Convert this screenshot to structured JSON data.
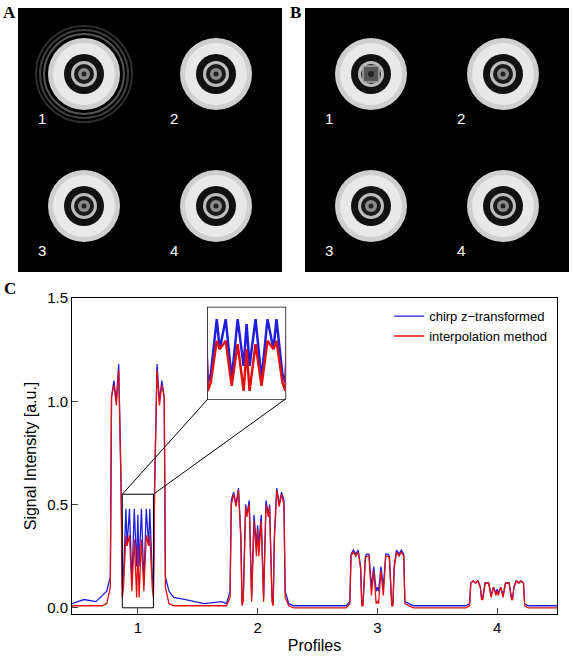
{
  "image_panels": [
    {
      "letter": "A",
      "labels": [
        "1",
        "2",
        "3",
        "4"
      ]
    },
    {
      "letter": "B",
      "labels": [
        "1",
        "2",
        "3",
        "4"
      ]
    }
  ],
  "chart_panel": {
    "letter": "C"
  },
  "chart_data": {
    "type": "line",
    "x_label": "Profiles",
    "y_label": "Signal Intensity [a.u.]",
    "xlim": [
      0.45,
      4.5
    ],
    "ylim": [
      -0.03,
      1.5
    ],
    "xticks": [
      1,
      2,
      3,
      4
    ],
    "yticks": [
      {
        "value": 0,
        "label": "0.0"
      },
      0.5,
      {
        "value": 1,
        "label": "1.0"
      },
      1.5
    ],
    "legend": "top right",
    "grid": false,
    "inset": {
      "xlim": [
        0.87,
        1.13
      ],
      "ylim": [
        0,
        0.55
      ]
    },
    "x": [
      0.45,
      0.55,
      0.65,
      0.7,
      0.74,
      0.77,
      0.78,
      0.8,
      0.82,
      0.84,
      0.86,
      0.87,
      0.88,
      0.9,
      0.91,
      0.93,
      0.95,
      0.97,
      0.99,
      1.0,
      1.01,
      1.03,
      1.05,
      1.07,
      1.09,
      1.1,
      1.12,
      1.13,
      1.14,
      1.16,
      1.18,
      1.2,
      1.22,
      1.23,
      1.26,
      1.3,
      1.4,
      1.55,
      1.7,
      1.74,
      1.77,
      1.78,
      1.8,
      1.82,
      1.84,
      1.86,
      1.87,
      1.88,
      1.9,
      1.91,
      1.93,
      1.95,
      1.97,
      1.99,
      2.0,
      2.01,
      2.03,
      2.05,
      2.07,
      2.09,
      2.1,
      2.12,
      2.13,
      2.14,
      2.16,
      2.18,
      2.2,
      2.22,
      2.23,
      2.26,
      2.3,
      2.4,
      2.55,
      2.7,
      2.74,
      2.77,
      2.78,
      2.8,
      2.82,
      2.84,
      2.86,
      2.87,
      2.88,
      2.9,
      2.91,
      2.93,
      2.95,
      2.97,
      2.99,
      3.0,
      3.01,
      3.03,
      3.05,
      3.07,
      3.09,
      3.1,
      3.12,
      3.13,
      3.14,
      3.16,
      3.18,
      3.2,
      3.22,
      3.23,
      3.26,
      3.3,
      3.4,
      3.55,
      3.7,
      3.74,
      3.77,
      3.78,
      3.8,
      3.82,
      3.84,
      3.86,
      3.87,
      3.88,
      3.9,
      3.91,
      3.93,
      3.95,
      3.97,
      3.99,
      4.0,
      4.01,
      4.03,
      4.05,
      4.07,
      4.09,
      4.1,
      4.12,
      4.13,
      4.14,
      4.16,
      4.18,
      4.2,
      4.22,
      4.23,
      4.26,
      4.35,
      4.5
    ],
    "series": [
      {
        "name": "chirp z−transformed",
        "color": "#1f1fdd",
        "values": [
          0.02,
          0.04,
          0.03,
          0.06,
          0.08,
          0.15,
          1.02,
          1.1,
          1.0,
          1.18,
          0.6,
          0.1,
          0.15,
          0.48,
          0.3,
          0.48,
          0.12,
          0.48,
          0.2,
          0.45,
          0.2,
          0.48,
          0.12,
          0.48,
          0.3,
          0.48,
          0.15,
          0.1,
          0.6,
          1.18,
          1.0,
          1.1,
          1.02,
          0.15,
          0.08,
          0.05,
          0.04,
          0.02,
          0.03,
          0.02,
          0.08,
          0.52,
          0.56,
          0.5,
          0.58,
          0.35,
          0.02,
          0.05,
          0.5,
          0.45,
          0.52,
          0.05,
          0.45,
          0.3,
          0.4,
          0.3,
          0.45,
          0.05,
          0.52,
          0.45,
          0.5,
          0.05,
          0.02,
          0.35,
          0.58,
          0.5,
          0.56,
          0.52,
          0.08,
          0.02,
          0.01,
          0.01,
          0.01,
          0.01,
          0.01,
          0.03,
          0.26,
          0.28,
          0.26,
          0.28,
          0.2,
          0.02,
          0.02,
          0.25,
          0.26,
          0.26,
          0.1,
          0.2,
          0.08,
          0.1,
          0.08,
          0.2,
          0.1,
          0.26,
          0.26,
          0.25,
          0.02,
          0.02,
          0.2,
          0.28,
          0.26,
          0.28,
          0.26,
          0.03,
          0.02,
          0.01,
          0.01,
          0.01,
          0.01,
          0.01,
          0.02,
          0.12,
          0.13,
          0.12,
          0.13,
          0.1,
          0.05,
          0.05,
          0.12,
          0.12,
          0.12,
          0.06,
          0.1,
          0.07,
          0.09,
          0.07,
          0.1,
          0.06,
          0.12,
          0.12,
          0.12,
          0.05,
          0.05,
          0.1,
          0.13,
          0.12,
          0.13,
          0.12,
          0.02,
          0.01,
          0.01,
          0.01
        ]
      },
      {
        "name": "interpolation method",
        "color": "#e01010",
        "values": [
          0.01,
          0.01,
          0.01,
          0.01,
          0.02,
          0.1,
          1.02,
          1.08,
          0.98,
          1.15,
          0.58,
          0.05,
          0.1,
          0.35,
          0.3,
          0.35,
          0.08,
          0.33,
          0.05,
          0.3,
          0.05,
          0.33,
          0.08,
          0.35,
          0.3,
          0.35,
          0.1,
          0.05,
          0.58,
          1.15,
          0.98,
          1.08,
          1.02,
          0.1,
          0.02,
          0.01,
          0.01,
          0.01,
          0.01,
          0.01,
          0.05,
          0.5,
          0.55,
          0.49,
          0.57,
          0.33,
          0.01,
          0.03,
          0.49,
          0.44,
          0.5,
          0.03,
          0.42,
          0.25,
          0.38,
          0.25,
          0.42,
          0.03,
          0.5,
          0.44,
          0.49,
          0.03,
          0.01,
          0.33,
          0.57,
          0.49,
          0.55,
          0.5,
          0.05,
          0.01,
          0,
          0,
          0,
          0,
          0,
          0.02,
          0.25,
          0.27,
          0.25,
          0.27,
          0.19,
          0.01,
          0.01,
          0.24,
          0.25,
          0.25,
          0.06,
          0.18,
          0.02,
          0.03,
          0.02,
          0.18,
          0.06,
          0.25,
          0.25,
          0.24,
          0.01,
          0.01,
          0.19,
          0.27,
          0.25,
          0.27,
          0.25,
          0.02,
          0.01,
          0,
          0,
          0,
          0,
          0,
          0.01,
          0.12,
          0.13,
          0.12,
          0.13,
          0.1,
          0.04,
          0.04,
          0.12,
          0.12,
          0.12,
          0.05,
          0.1,
          0.06,
          0.08,
          0.06,
          0.1,
          0.05,
          0.12,
          0.12,
          0.12,
          0.04,
          0.04,
          0.1,
          0.13,
          0.12,
          0.13,
          0.12,
          0.01,
          0,
          0,
          0
        ]
      }
    ]
  }
}
